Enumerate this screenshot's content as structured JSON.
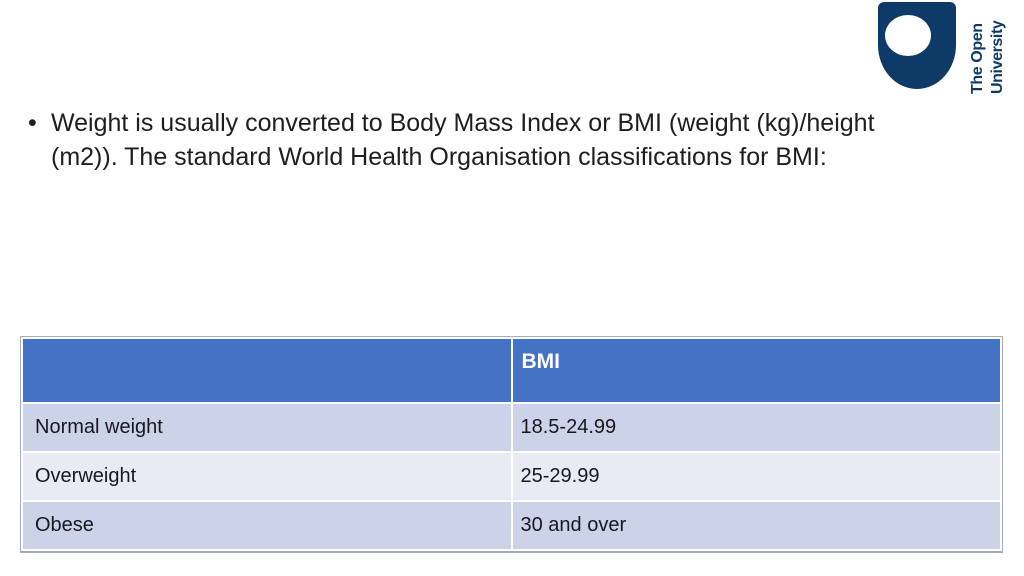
{
  "colors": {
    "background": "#ffffff",
    "logo_navy": "#0d3a67",
    "accent_header": "#4472c4",
    "header_text": "#ffffff",
    "row_odd": "#ccd3e8",
    "row_even": "#e9ebf4",
    "table_border": "#a2abc2",
    "divider": "#ffffff",
    "text": "#1e1e1e",
    "table_text": "#17171f"
  },
  "logo": {
    "line1": "The Open",
    "line2": "University"
  },
  "bullet": {
    "marker": "•",
    "lines": [
      "Weight is usually converted to Body Mass Index or BMI (weight (kg)/height",
      "(m2)). The standard World Health Organisation classifications for BMI:"
    ]
  },
  "table": {
    "header": [
      "",
      "BMI"
    ],
    "rows": [
      {
        "label": "Normal weight",
        "value": "18.5-24.99"
      },
      {
        "label": "Overweight",
        "value": "25-29.99"
      },
      {
        "label": "Obese",
        "value": "30 and over"
      }
    ]
  }
}
